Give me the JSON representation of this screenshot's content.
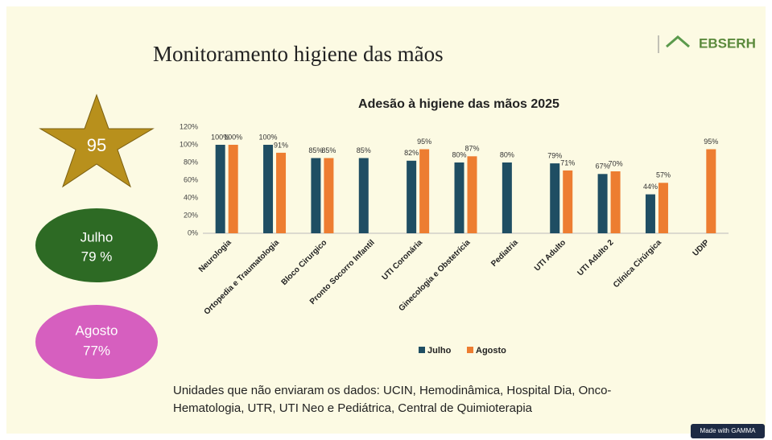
{
  "slide": {
    "title": "Monitoramento higiene das mãos",
    "star": "95",
    "badges": [
      {
        "name": "Julho",
        "value": "79 %"
      },
      {
        "name": "Agosto",
        "value": "77%"
      }
    ],
    "note": [
      "Unidades que não enviaram os dados: UCIN, Hemodinâmica, Hospital Dia, Onco-",
      "Hematologia, UTR, UTI Neo e Pediátrica, Central de Quimioterapia"
    ],
    "logo": "EBSERH",
    "footer": "Made with GAMMA"
  },
  "chart_data": {
    "type": "bar",
    "title": "Adesão à higiene das mãos 2025",
    "categories": [
      "Neurologia",
      "Ortopedia e Traumatologia",
      "Bloco Cirurgico",
      "Pronto Socorro Infantil",
      "UTI Coronária",
      "Ginecologia e Obstetrícia",
      "Pediatria",
      "UTI Adulto",
      "UTI Adulto 2",
      "Clínica Cirúrgica",
      "UDIP"
    ],
    "series": [
      {
        "name": "Julho",
        "color": "#1f4e63",
        "values": [
          100,
          100,
          85,
          85,
          82,
          80,
          80,
          79,
          67,
          44,
          null
        ],
        "value_labels": [
          "100%",
          "100%",
          "85%",
          "85%",
          "82%",
          "80%",
          "80%",
          "79%",
          "67%",
          "44%",
          null
        ]
      },
      {
        "name": "Agosto",
        "color": "#ed7d31",
        "values": [
          100,
          91,
          85,
          null,
          95,
          87,
          null,
          71,
          70,
          57,
          95
        ],
        "value_labels": [
          "100%",
          "91%",
          "85%",
          null,
          "95%",
          "87%",
          null,
          "71%",
          "70%",
          "57%",
          "95%"
        ]
      }
    ],
    "ylim": [
      0,
      120
    ],
    "yticks": [
      {
        "value": 0,
        "label": "0%"
      },
      {
        "value": 20,
        "label": "20%"
      },
      {
        "value": 40,
        "label": "40%"
      },
      {
        "value": 60,
        "label": "60%"
      },
      {
        "value": 80,
        "label": "80%"
      },
      {
        "value": 100,
        "label": "100%"
      },
      {
        "value": 120,
        "label": "120%"
      }
    ],
    "grid": false,
    "legend": "bottom"
  }
}
